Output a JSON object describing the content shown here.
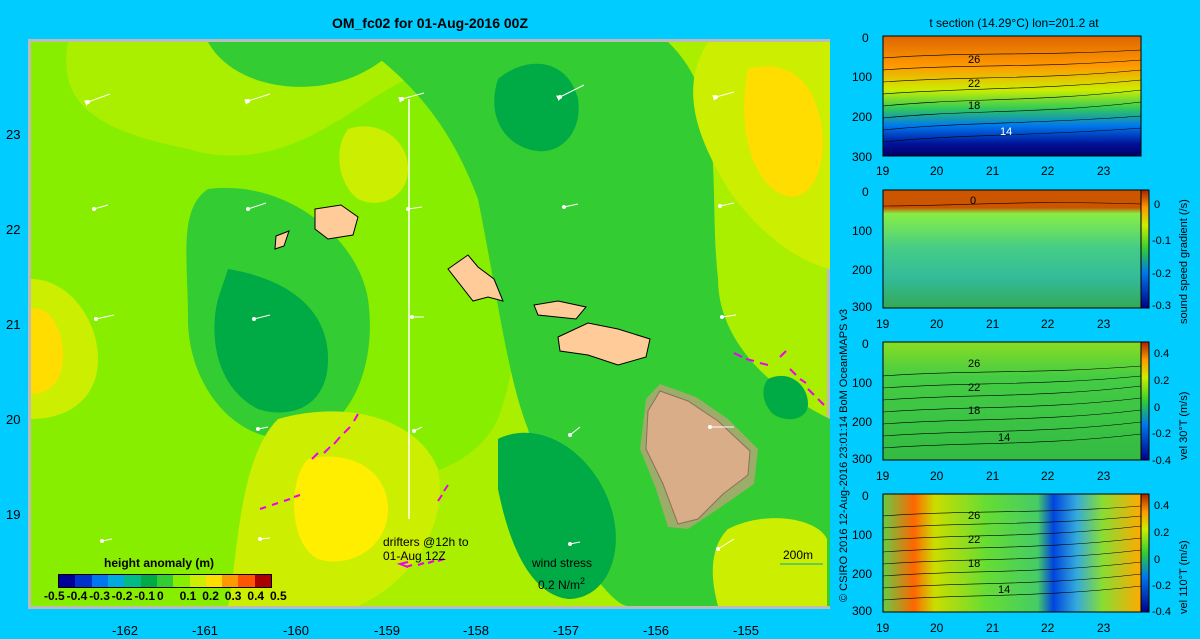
{
  "title": "OM_fc02 for 01-Aug-2016 00Z",
  "map": {
    "lon_ticks": [
      "-162",
      "-161",
      "-160",
      "-159",
      "-158",
      "-157",
      "-156",
      "-155"
    ],
    "lat_ticks": [
      "23",
      "22",
      "21",
      "20",
      "19"
    ],
    "legend": {
      "title": "height anomaly (m)",
      "ticks": [
        "-0.5",
        "-0.4",
        "-0.3",
        "-0.2",
        "-0.1",
        "0",
        "0.1",
        "0.2",
        "0.3",
        "0.4",
        "0.5"
      ],
      "colors": [
        "#000099",
        "#0033cc",
        "#0077ee",
        "#00aadd",
        "#00bb88",
        "#00aa44",
        "#33cc33",
        "#88ee00",
        "#ccee00",
        "#ffdd00",
        "#ff9900",
        "#ff5500",
        "#aa0000"
      ]
    },
    "drifters_label_1": "drifters @12h to",
    "drifters_label_2": "01-Aug 12Z",
    "wind_stress_label": "wind stress",
    "wind_stress_value": "0.2 N/m",
    "wind_stress_exp": "2",
    "scale_label": "200m"
  },
  "credit": "© CSIRO 2016  12-Aug-2016 23:01:14 BoM OceanMAPS v3",
  "panels": {
    "section_title": "t section (14.29°C) lon=201.2 at",
    "x_ticks": [
      "19",
      "20",
      "21",
      "22",
      "23"
    ],
    "y_ticks": [
      "0",
      "100",
      "200",
      "300"
    ],
    "panel1": {
      "contour_labels": [
        "26",
        "22",
        "18",
        "14"
      ]
    },
    "panel2": {
      "contour_labels": [
        "0"
      ],
      "cbar_ticks": [
        "0",
        "-0.1",
        "-0.2",
        "-0.3"
      ],
      "cbar_label": "sound speed gradient (/s)"
    },
    "panel3": {
      "contour_labels": [
        "26",
        "22",
        "18",
        "14"
      ],
      "cbar_ticks": [
        "0.4",
        "0.2",
        "0",
        "-0.2",
        "-0.4"
      ],
      "cbar_label": "vel 30°T (m/s)"
    },
    "panel4": {
      "contour_labels": [
        "26",
        "22",
        "18",
        "14"
      ],
      "cbar_ticks": [
        "0.4",
        "0.2",
        "0",
        "-0.2",
        "-0.4"
      ],
      "cbar_label": "vel 110°T (m/s)"
    }
  }
}
